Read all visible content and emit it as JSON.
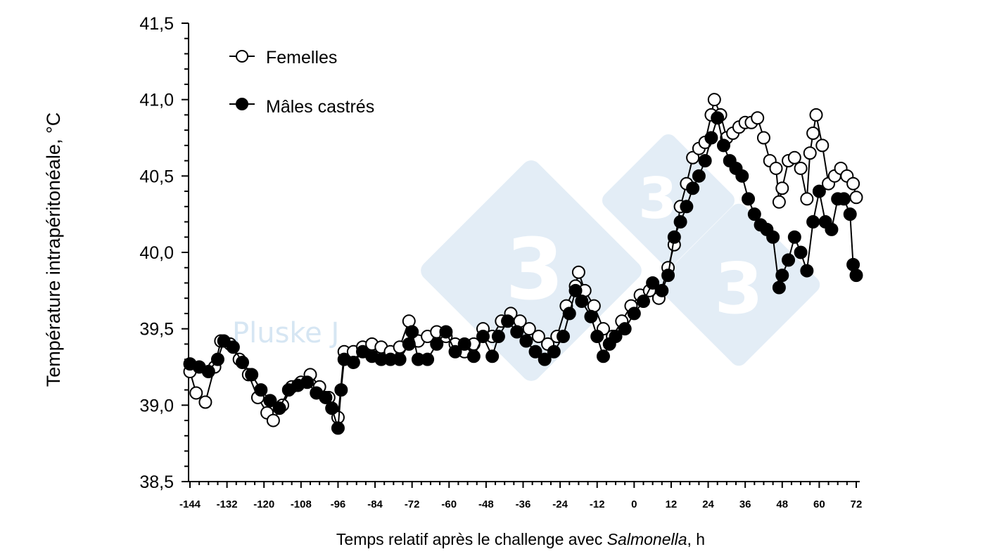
{
  "chart_data": {
    "type": "line",
    "title": "",
    "xlabel_prefix": "Temps relatif après le challenge avec ",
    "xlabel_italic": "Salmonella",
    "xlabel_suffix": ", h",
    "ylabel": "Température intrapéritonéale, °C",
    "xlim": [
      -144,
      72
    ],
    "ylim": [
      38.5,
      41.5
    ],
    "x_ticks": [
      "-144",
      "-132",
      "-120",
      "-108",
      "-96",
      "-84",
      "-72",
      "-60",
      "-48",
      "-36",
      "-24",
      "-12",
      "0",
      "12",
      "24",
      "36",
      "48",
      "60",
      "72"
    ],
    "y_ticks": [
      "38,5",
      "39,0",
      "39,5",
      "40,0",
      "40,5",
      "41,0",
      "41,5"
    ],
    "legend_position": "top-left",
    "grid": false,
    "watermark_text": "Pluske J",
    "series": [
      {
        "name": "Femelles",
        "marker": "open-circle",
        "color": "#000000",
        "x": [
          -144,
          -142,
          -139,
          -136,
          -134,
          -131,
          -128,
          -125,
          -122,
          -119,
          -117,
          -114,
          -111,
          -108,
          -105,
          -102,
          -99,
          -96,
          -94,
          -91,
          -88,
          -85,
          -82,
          -79,
          -76,
          -73,
          -70,
          -67,
          -64,
          -61,
          -58,
          -55,
          -52,
          -49,
          -46,
          -43,
          -40,
          -37,
          -34,
          -31,
          -28,
          -25,
          -22,
          -19,
          -18,
          -16,
          -13,
          -10,
          -7,
          -4,
          -1,
          2,
          5,
          8,
          11,
          13,
          15,
          17,
          19,
          21,
          23,
          25,
          26,
          28,
          30,
          32,
          34,
          36,
          38,
          40,
          42,
          44,
          46,
          47,
          48,
          50,
          52,
          54,
          56,
          57,
          58,
          59,
          61,
          63,
          65,
          67,
          69,
          71,
          72
        ],
        "y": [
          39.22,
          39.08,
          39.02,
          39.25,
          39.42,
          39.4,
          39.3,
          39.2,
          39.05,
          38.95,
          38.9,
          39.0,
          39.12,
          39.15,
          39.2,
          39.12,
          39.05,
          38.92,
          39.35,
          39.35,
          39.38,
          39.4,
          39.38,
          39.35,
          39.38,
          39.55,
          39.42,
          39.45,
          39.48,
          39.45,
          39.4,
          39.35,
          39.4,
          39.5,
          39.45,
          39.55,
          39.6,
          39.55,
          39.5,
          39.45,
          39.4,
          39.45,
          39.65,
          39.78,
          39.87,
          39.75,
          39.65,
          39.5,
          39.45,
          39.55,
          39.65,
          39.72,
          39.75,
          39.7,
          39.9,
          40.05,
          40.3,
          40.45,
          40.62,
          40.68,
          40.72,
          40.9,
          41.0,
          40.9,
          40.75,
          40.78,
          40.82,
          40.85,
          40.85,
          40.88,
          40.75,
          40.6,
          40.55,
          40.33,
          40.42,
          40.6,
          40.62,
          40.55,
          40.35,
          40.65,
          40.78,
          40.9,
          40.7,
          40.45,
          40.5,
          40.55,
          40.5,
          40.45,
          40.36
        ]
      },
      {
        "name": "Mâles castrés",
        "marker": "filled-circle",
        "color": "#000000",
        "x": [
          -144,
          -141,
          -138,
          -135,
          -133,
          -130,
          -127,
          -124,
          -121,
          -118,
          -115,
          -112,
          -109,
          -106,
          -103,
          -100,
          -98,
          -96,
          -95,
          -94,
          -91,
          -88,
          -85,
          -82,
          -79,
          -76,
          -73,
          -72,
          -70,
          -67,
          -64,
          -61,
          -58,
          -55,
          -52,
          -49,
          -46,
          -44,
          -41,
          -38,
          -35,
          -32,
          -29,
          -26,
          -23,
          -21,
          -19,
          -17,
          -14,
          -12,
          -10,
          -8,
          -6,
          -3,
          0,
          3,
          6,
          9,
          11,
          13,
          15,
          17,
          19,
          21,
          23,
          25,
          27,
          29,
          31,
          33,
          35,
          37,
          39,
          41,
          43,
          45,
          47,
          48,
          50,
          52,
          54,
          56,
          58,
          60,
          62,
          64,
          66,
          68,
          70,
          71,
          72
        ],
        "y": [
          39.27,
          39.25,
          39.22,
          39.3,
          39.42,
          39.38,
          39.28,
          39.2,
          39.1,
          39.03,
          38.98,
          39.1,
          39.13,
          39.15,
          39.08,
          39.05,
          38.98,
          38.85,
          39.1,
          39.3,
          39.28,
          39.35,
          39.32,
          39.3,
          39.3,
          39.3,
          39.4,
          39.48,
          39.3,
          39.3,
          39.4,
          39.48,
          39.35,
          39.4,
          39.32,
          39.45,
          39.32,
          39.45,
          39.55,
          39.48,
          39.42,
          39.35,
          39.3,
          39.35,
          39.45,
          39.6,
          39.75,
          39.68,
          39.58,
          39.45,
          39.32,
          39.4,
          39.45,
          39.5,
          39.6,
          39.68,
          39.8,
          39.75,
          39.85,
          40.1,
          40.2,
          40.3,
          40.42,
          40.5,
          40.6,
          40.75,
          40.88,
          40.7,
          40.6,
          40.55,
          40.5,
          40.35,
          40.25,
          40.18,
          40.15,
          40.1,
          39.77,
          39.85,
          39.95,
          40.1,
          40.0,
          39.88,
          40.2,
          40.4,
          40.2,
          40.15,
          40.35,
          40.35,
          40.25,
          39.92,
          39.85
        ]
      }
    ]
  }
}
